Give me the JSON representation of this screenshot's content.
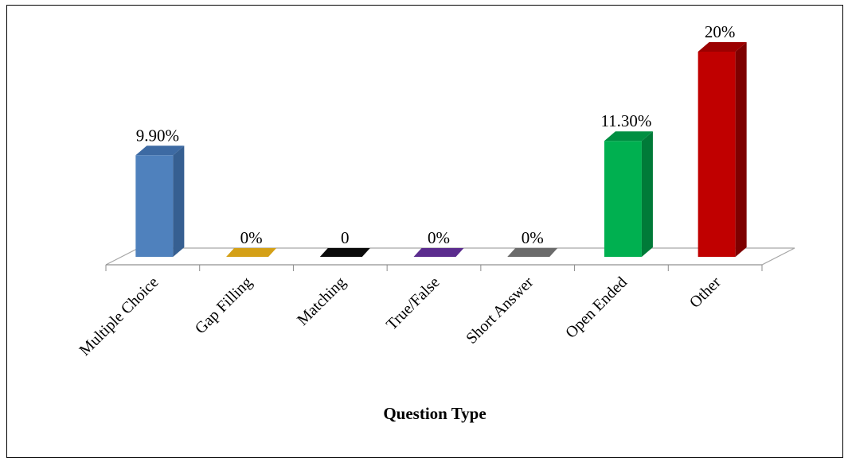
{
  "chart_data": {
    "type": "bar",
    "xlabel": "Question Type",
    "ylabel": "",
    "ylim": [
      0,
      20
    ],
    "grid": false,
    "legend": "none",
    "categories": [
      "Multiple Choice",
      "Gap Filling",
      "Matching",
      "True/False",
      "Short Answer",
      "Open Ended",
      "Other"
    ],
    "values": [
      9.9,
      0,
      0,
      0,
      0,
      11.3,
      20
    ],
    "data_labels": [
      "9.90%",
      "0%",
      "0",
      "0%",
      "0%",
      "11.30%",
      "20%"
    ],
    "colors": [
      "#4f81bd",
      "#d4a017",
      "#0a0a0a",
      "#5b2c8e",
      "#6b6b6b",
      "#00b050",
      "#c00000"
    ],
    "side_colors": [
      "#365f91",
      "#9a7410",
      "#000000",
      "#3e1d63",
      "#4a4a4a",
      "#007a38",
      "#7e0000"
    ],
    "top_colors": [
      "#3d6aa3",
      "#b8890f",
      "#222222",
      "#4a2473",
      "#555555",
      "#008f42",
      "#9c0000"
    ]
  }
}
